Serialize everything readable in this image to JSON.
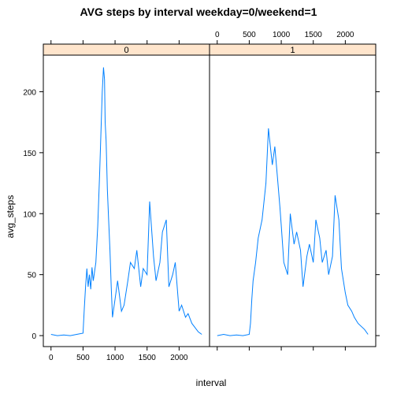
{
  "chart_data": {
    "type": "line",
    "title": "AVG steps by interval weekday=0/weekend=1",
    "xlabel": "interval",
    "ylabel": "avg_steps",
    "xlim": [
      -120,
      2475
    ],
    "ylim": [
      -9,
      230
    ],
    "x_ticks": [
      "0",
      "500",
      "1000",
      "1500",
      "2000"
    ],
    "y_ticks": [
      "0",
      "50",
      "100",
      "150",
      "200"
    ],
    "line_color": "#0080ff",
    "strip_color": "#ffe5cc",
    "panels": [
      {
        "strip": "0",
        "series": [
          {
            "x": [
              0,
              100,
              200,
              300,
              400,
              500,
              520,
              540,
              560,
              580,
              600,
              620,
              640,
              660,
              700,
              730,
              760,
              800,
              820,
              835,
              845,
              860,
              880,
              900,
              920,
              940,
              960,
              1000,
              1040,
              1100,
              1140,
              1200,
              1240,
              1300,
              1340,
              1400,
              1440,
              1500,
              1540,
              1600,
              1640,
              1700,
              1740,
              1800,
              1840,
              1900,
              1940,
              2000,
              2040,
              2100,
              2140,
              2200,
              2300,
              2355
            ],
            "y": [
              1,
              0,
              0.5,
              0,
              1,
              2,
              22,
              41,
              55,
              40,
              50,
              38,
              56,
              45,
              60,
              90,
              135,
              200,
              220,
              210,
              175,
              160,
              120,
              95,
              70,
              40,
              15,
              30,
              45,
              20,
              25,
              45,
              60,
              55,
              70,
              40,
              55,
              50,
              110,
              65,
              45,
              60,
              85,
              95,
              40,
              50,
              60,
              20,
              25,
              15,
              18,
              10,
              3,
              1
            ]
          }
        ]
      },
      {
        "strip": "1",
        "series": [
          {
            "x": [
              0,
              100,
              200,
              300,
              400,
              500,
              520,
              540,
              560,
              600,
              640,
              700,
              760,
              800,
              820,
              860,
              900,
              940,
              980,
              1000,
              1040,
              1100,
              1140,
              1200,
              1240,
              1300,
              1340,
              1400,
              1440,
              1500,
              1540,
              1600,
              1640,
              1700,
              1740,
              1800,
              1840,
              1900,
              1940,
              2000,
              2040,
              2100,
              2140,
              2200,
              2300,
              2355
            ],
            "y": [
              0,
              1,
              0,
              0.5,
              0,
              1,
              10,
              30,
              45,
              60,
              80,
              95,
              125,
              170,
              160,
              140,
              155,
              130,
              105,
              90,
              60,
              50,
              100,
              75,
              85,
              70,
              40,
              65,
              75,
              60,
              95,
              80,
              60,
              70,
              50,
              65,
              115,
              95,
              55,
              35,
              25,
              20,
              15,
              10,
              5,
              1
            ]
          }
        ]
      }
    ]
  }
}
